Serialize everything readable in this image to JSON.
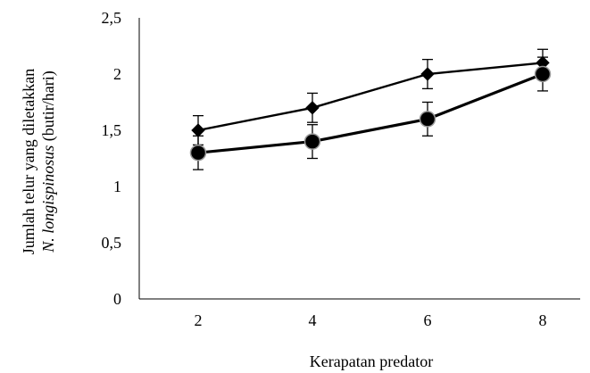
{
  "chart_data": {
    "type": "line",
    "x": [
      2,
      4,
      6,
      8
    ],
    "xlabel": "Kerapatan predator",
    "ylabel_line1": "Jumlah telur yang diletakkan",
    "ylabel_line2_italic": "N. longispinosus",
    "ylabel_line2_rest": " (butir/hari)",
    "ylim": [
      0,
      2.5
    ],
    "yticks": [
      "0",
      "0,5",
      "1",
      "1,5",
      "2",
      "2,5"
    ],
    "ytick_values": [
      0,
      0.5,
      1,
      1.5,
      2,
      2.5
    ],
    "xticks": [
      "2",
      "4",
      "6",
      "8"
    ],
    "series": [
      {
        "marker": "diamond",
        "values": [
          1.5,
          1.7,
          2.0,
          2.1
        ],
        "err": [
          0.13,
          0.13,
          0.13,
          0.12
        ],
        "color": "#000000"
      },
      {
        "marker": "circle",
        "values": [
          1.3,
          1.4,
          1.6,
          2.0
        ],
        "err": [
          0.15,
          0.15,
          0.15,
          0.15
        ],
        "color": "#000000"
      }
    ],
    "grid": false,
    "legend": "none"
  }
}
